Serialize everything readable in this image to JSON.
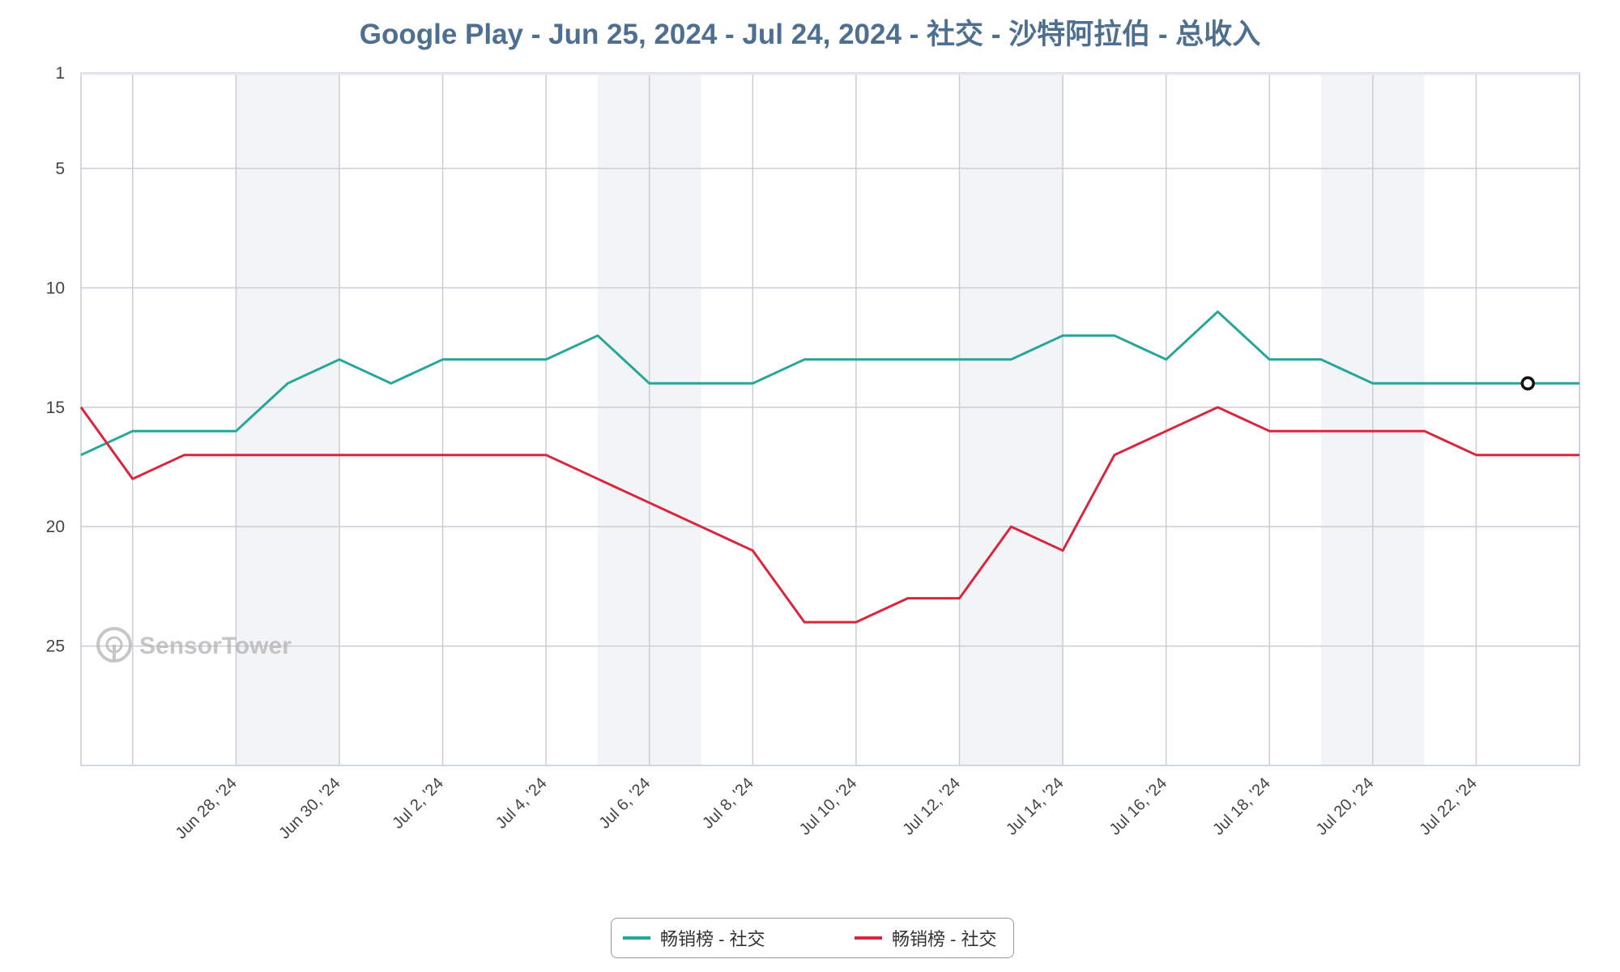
{
  "chart_data": {
    "type": "line",
    "title": "Google Play - Jun 25, 2024 - Jul 24, 2024 - 社交 - 沙特阿拉伯 - 总收入",
    "y_axis": {
      "ticks": [
        1,
        5,
        10,
        15,
        20,
        25
      ],
      "range": [
        1,
        30
      ],
      "reversed": true
    },
    "x": [
      "Jun 25",
      "Jun 26",
      "Jun 27",
      "Jun 28",
      "Jun 29",
      "Jun 30",
      "Jul 1",
      "Jul 2",
      "Jul 3",
      "Jul 4",
      "Jul 5",
      "Jul 6",
      "Jul 7",
      "Jul 8",
      "Jul 9",
      "Jul 10",
      "Jul 11",
      "Jul 12",
      "Jul 13",
      "Jul 14",
      "Jul 15",
      "Jul 16",
      "Jul 17",
      "Jul 18",
      "Jul 19",
      "Jul 20",
      "Jul 21",
      "Jul 22",
      "Jul 23",
      "Jul 24"
    ],
    "x_tick_labels": [
      "Jun 28, '24",
      "Jun 30, '24",
      "Jul 2, '24",
      "Jul 4, '24",
      "Jul 6, '24",
      "Jul 8, '24",
      "Jul 10, '24",
      "Jul 12, '24",
      "Jul 14, '24",
      "Jul 16, '24",
      "Jul 18, '24",
      "Jul 20, '24",
      "Jul 22, '24"
    ],
    "series": [
      {
        "name": "畅销榜 - 社交",
        "color": "#26a69a",
        "values": [
          17,
          16,
          16,
          16,
          14,
          13,
          14,
          13,
          13,
          13,
          12,
          14,
          14,
          14,
          13,
          13,
          13,
          13,
          13,
          12,
          12,
          13,
          11,
          13,
          13,
          14,
          14,
          14,
          14,
          14
        ]
      },
      {
        "name": "畅销榜 - 社交",
        "color": "#d9263f",
        "values": [
          15,
          18,
          17,
          17,
          17,
          17,
          17,
          17,
          17,
          17,
          18,
          19,
          20,
          21,
          24,
          24,
          23,
          23,
          20,
          21,
          17,
          16,
          15,
          16,
          16,
          16,
          16,
          17,
          17,
          17
        ]
      }
    ],
    "highlight_point": {
      "series": 0,
      "x": "Jul 23"
    },
    "weekend_bands": [
      [
        "Jun 28",
        "Jun 30"
      ],
      [
        "Jul 5",
        "Jul 7"
      ],
      [
        "Jul 12",
        "Jul 14"
      ],
      [
        "Jul 19",
        "Jul 21"
      ]
    ],
    "grid": true,
    "legend_position": "bottom-center",
    "watermark": "SensorTower"
  }
}
